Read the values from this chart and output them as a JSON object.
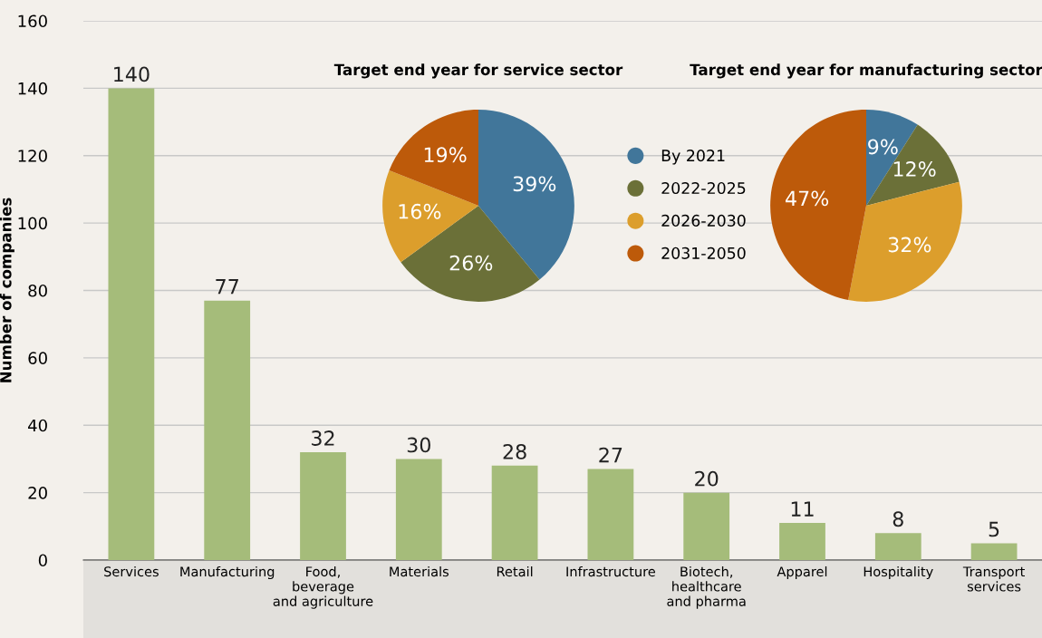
{
  "chart_data": [
    {
      "type": "bar",
      "ylabel": "Number of companies",
      "categories": [
        "Services",
        "Manufacturing",
        "Food,\nbeverage\nand agriculture",
        "Materials",
        "Retail",
        "Infrastructure",
        "Biotech,\nhealthcare\nand pharma",
        "Apparel",
        "Hospitality",
        "Transport\nservices"
      ],
      "values": [
        140,
        77,
        32,
        30,
        28,
        27,
        20,
        11,
        8,
        5
      ],
      "color": "#a5bc7a",
      "ylim": [
        0,
        160
      ],
      "yticks": [
        0,
        20,
        40,
        60,
        80,
        100,
        120,
        140,
        160
      ],
      "grid": "y",
      "data_labels": true
    },
    {
      "type": "pie",
      "title": "Target end year for service sector",
      "categories": [
        "By 2021",
        "2022-2025",
        "2026-2030",
        "2031-2050"
      ],
      "values": [
        39,
        26,
        16,
        19
      ],
      "value_labels": [
        "39%",
        "26%",
        "16%",
        "19%"
      ],
      "colors": [
        "#41769a",
        "#6b7038",
        "#dc9e2c",
        "#bd5a0a"
      ],
      "legend": "right"
    },
    {
      "type": "pie",
      "title": "Target end year for manufacturing sector",
      "values": [
        9,
        12,
        32,
        47
      ],
      "value_labels": [
        "9%",
        "12%",
        "32%",
        "47%"
      ],
      "colors": [
        "#41769a",
        "#6b7038",
        "#dc9e2c",
        "#bd5a0a"
      ],
      "legend": false
    }
  ]
}
